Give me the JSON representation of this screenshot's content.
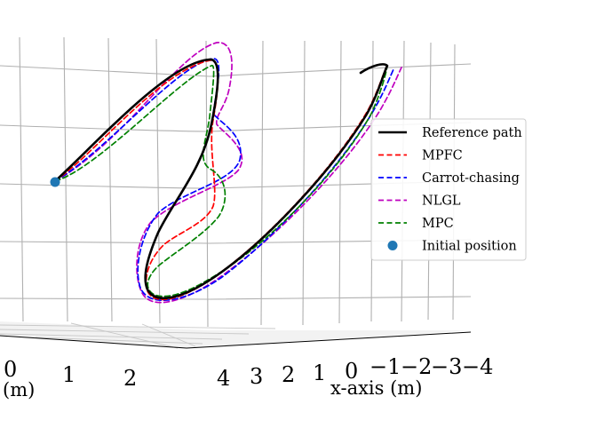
{
  "chart_data": {
    "type": "line",
    "projection": "3d",
    "title": "",
    "xlabel": "x-axis (m)",
    "ylabel": "(m)",
    "x_ticks": [
      "4",
      "3",
      "2",
      "1",
      "0",
      "−1",
      "−2",
      "−3",
      "−4"
    ],
    "y_ticks": [
      "0",
      "1",
      "2"
    ],
    "grid": true,
    "legend_position": "right",
    "series": [
      {
        "name": "Reference path",
        "color": "#000000",
        "style": "solid"
      },
      {
        "name": "MPFC",
        "color": "#ff0000",
        "style": "dashed"
      },
      {
        "name": "Carrot-chasing",
        "color": "#0000ff",
        "style": "dashed"
      },
      {
        "name": "NLGL",
        "color": "#bf00bf",
        "style": "dashed"
      },
      {
        "name": "MPC",
        "color": "#008000",
        "style": "dashed"
      },
      {
        "name": "Initial position",
        "color": "#1f77b4",
        "style": "marker"
      }
    ]
  }
}
